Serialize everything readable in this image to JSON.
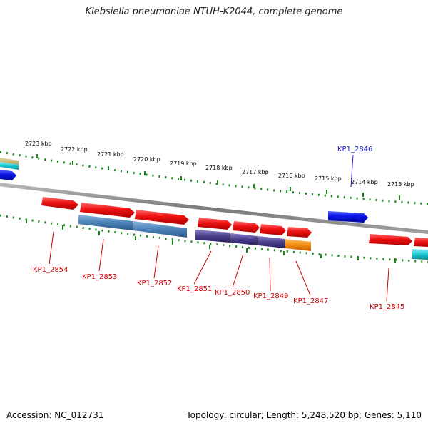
{
  "title": "Klebsiella pneumoniae NTUH-K2044, complete genome",
  "footer": {
    "accession": "Accession: NC_012731",
    "stats": "Topology: circular; Length: 5,248,520 bp; Genes: 5,110"
  },
  "colors": {
    "red_gene": "#ee1111",
    "blue_gene": "#0a14e6",
    "steel_gene": "#4a82b8",
    "purple_gene": "#4a3e8c",
    "orange_gene": "#f28a10",
    "cyan_gene": "#19c8d2",
    "tick_green": "#1a8a1a",
    "backbone": "#8a8a8a",
    "label_red": "#cc0000",
    "label_blue": "#1a1acc"
  },
  "ruler": {
    "labels": [
      "2723 kbp",
      "2722 kbp",
      "2721 kbp",
      "2720 kbp",
      "2719 kbp",
      "2718 kbp",
      "2717 kbp",
      "2716 kbp",
      "2715 kbp",
      "2714 kbp",
      "2713 kbp"
    ]
  },
  "genes": [
    {
      "id": "KP1_2854",
      "label": "KP1_2854",
      "strand": "forward",
      "color_key": "red"
    },
    {
      "id": "KP1_2853",
      "label": "KP1_2853",
      "strand": "forward",
      "color_key": "red_steel"
    },
    {
      "id": "KP1_2852",
      "label": "KP1_2852",
      "strand": "forward",
      "color_key": "red_steel"
    },
    {
      "id": "KP1_2851",
      "label": "KP1_2851",
      "strand": "forward",
      "color_key": "red_purple"
    },
    {
      "id": "KP1_2850",
      "label": "KP1_2850",
      "strand": "forward",
      "color_key": "red_purple"
    },
    {
      "id": "KP1_2849",
      "label": "KP1_2849",
      "strand": "forward",
      "color_key": "red_purple"
    },
    {
      "id": "KP1_2847",
      "label": "KP1_2847",
      "strand": "forward",
      "color_key": "red_orange"
    },
    {
      "id": "KP1_2846",
      "label": "KP1_2846",
      "strand": "reverse",
      "color_key": "blue"
    },
    {
      "id": "KP1_2845",
      "label": "KP1_2845",
      "strand": "forward",
      "color_key": "red_cyan"
    }
  ]
}
